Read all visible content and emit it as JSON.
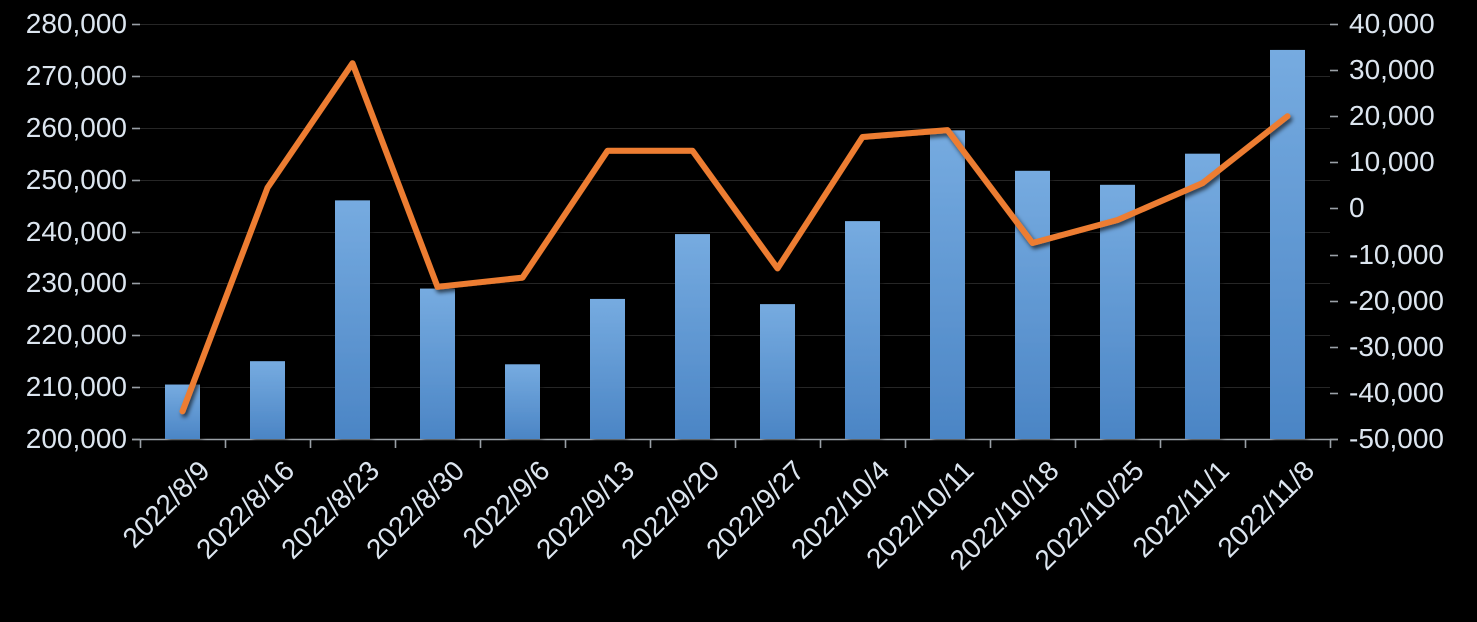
{
  "chart_data": {
    "type": "bar",
    "subtype": "combo-bar-line-dual-axis",
    "title": "",
    "categories": [
      "2022/8/9",
      "2022/8/16",
      "2022/8/23",
      "2022/8/30",
      "2022/9/6",
      "2022/9/13",
      "2022/9/20",
      "2022/9/27",
      "2022/10/4",
      "2022/10/11",
      "2022/10/18",
      "2022/10/25",
      "2022/11/1",
      "2022/11/8"
    ],
    "series": [
      {
        "name": "bars",
        "type": "bar",
        "axis": "left",
        "values": [
          210500,
          215000,
          246000,
          229000,
          214400,
          227000,
          239500,
          226000,
          242000,
          259500,
          251700,
          249000,
          255000,
          275000
        ]
      },
      {
        "name": "line",
        "type": "line",
        "axis": "right",
        "values": [
          -44000,
          4500,
          31500,
          -17000,
          -15000,
          12500,
          12500,
          -13000,
          15500,
          17000,
          -7500,
          -2500,
          5500,
          20000
        ]
      }
    ],
    "left_axis": {
      "min": 200000,
      "max": 280000,
      "step": 10000,
      "tick_labels": [
        "280,000",
        "270,000",
        "260,000",
        "250,000",
        "240,000",
        "230,000",
        "220,000",
        "210,000",
        "200,000"
      ]
    },
    "right_axis": {
      "min": -50000,
      "max": 40000,
      "step": 10000,
      "tick_labels": [
        "40,000",
        "30,000",
        "20,000",
        "10,000",
        "0",
        "-10,000",
        "-20,000",
        "-30,000",
        "-40,000",
        "-50,000"
      ]
    },
    "grid": true,
    "legend": "none",
    "colors": {
      "background": "#000000",
      "gridline": "#262626",
      "axis_line": "#9aa0a6",
      "tick_text": "#dce5ef",
      "bar_top": "#76abe0",
      "bar_bottom": "#4b85c5",
      "line": "#ed7d31"
    }
  }
}
